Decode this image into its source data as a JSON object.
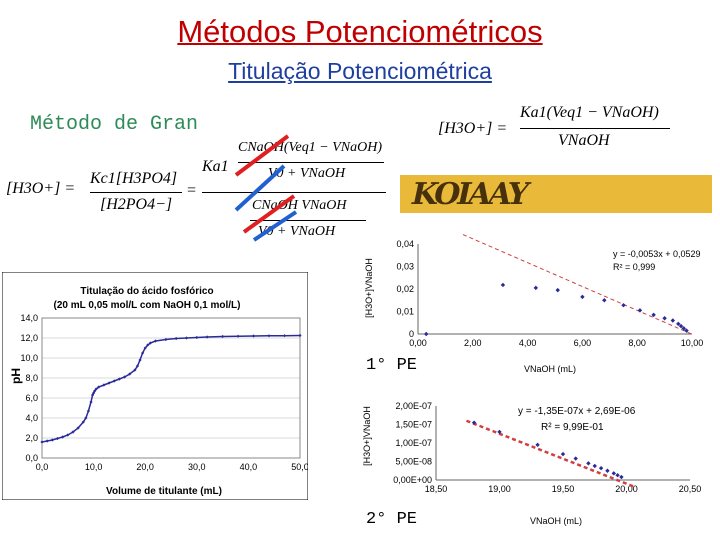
{
  "header": {
    "title": "Métodos Potenciométricos",
    "subtitle": "Titulação Potenciométrica",
    "method": "Método de Gran"
  },
  "equations": {
    "eq_left": {
      "lhs": "[H3O+] =",
      "num": "Kc1[H3PO4]",
      "den": "[H2PO4−]",
      "equals": "=",
      "ka": "Ka1",
      "c_num": "CNaOH(Veq1 − VNaOH)",
      "v_sum1": "V0 + VNaOH",
      "c_den": "CNaOH VNaOH",
      "v_sum2": "V0 + VNaOH"
    },
    "eq_right": {
      "lhs": "[H3O+] =",
      "num": "Ka1(Veq1 − VNaOH)",
      "den": "VNaOH"
    }
  },
  "labels": {
    "pe1": "1° PE",
    "pe2": "2° PE"
  },
  "chart_data": [
    {
      "type": "line",
      "title": "Titulação do ácido fosfórico",
      "subtitle": "(20 mL 0,05 mol/L com NaOH 0,1 mol/L)",
      "xlabel": "Volume de titulante (mL)",
      "ylabel": "pH",
      "xlim": [
        0,
        50
      ],
      "ylim": [
        0,
        14
      ],
      "xticks": [
        "0,0",
        "10,0",
        "20,0",
        "30,0",
        "40,0",
        "50,0"
      ],
      "yticks": [
        "0,0",
        "2,0",
        "4,0",
        "6,0",
        "8,0",
        "10,0",
        "12,0",
        "14,0"
      ],
      "x": [
        0,
        1,
        2,
        3,
        4,
        5,
        6,
        7,
        8,
        8.5,
        9,
        9.5,
        9.8,
        10,
        10.2,
        10.5,
        11,
        12,
        13,
        14,
        15,
        16,
        17,
        18,
        18.5,
        19,
        19.5,
        20,
        20.5,
        21,
        22,
        24,
        26,
        28,
        30,
        32,
        35,
        38,
        41,
        44,
        47,
        50
      ],
      "y": [
        1.6,
        1.7,
        1.8,
        1.95,
        2.1,
        2.3,
        2.6,
        3.0,
        3.6,
        4.0,
        4.7,
        5.6,
        6.3,
        6.5,
        6.7,
        6.9,
        7.1,
        7.3,
        7.5,
        7.7,
        7.9,
        8.1,
        8.4,
        8.8,
        9.2,
        9.8,
        10.5,
        11.0,
        11.3,
        11.5,
        11.7,
        11.85,
        11.95,
        12.0,
        12.05,
        12.1,
        12.15,
        12.18,
        12.2,
        12.22,
        12.23,
        12.25
      ]
    },
    {
      "type": "scatter",
      "xlabel": "VNaOH (mL)",
      "ylabel": "[H3O+]VNaOH",
      "xlim": [
        0,
        10
      ],
      "ylim": [
        0,
        0.04
      ],
      "xticks": [
        "0,00",
        "2,00",
        "4,00",
        "6,00",
        "8,00",
        "10,00"
      ],
      "yticks": [
        "0",
        "0,01",
        "0,02",
        "0,03",
        "0,04"
      ],
      "equation": "y = -0,0053x + 0,0529",
      "r2": "R² = 0,999",
      "x": [
        0.3,
        3.1,
        4.3,
        5.1,
        6.0,
        6.8,
        7.5,
        8.1,
        8.6,
        9.0,
        9.3,
        9.5,
        9.6,
        9.7,
        9.8
      ],
      "y": [
        0.0,
        0.0218,
        0.0205,
        0.0195,
        0.0165,
        0.015,
        0.0128,
        0.0105,
        0.0085,
        0.007,
        0.006,
        0.0045,
        0.0035,
        0.0025,
        0.0015
      ],
      "fit": {
        "slope": -0.0053,
        "intercept": 0.0529
      }
    },
    {
      "type": "scatter",
      "xlabel": "VNaOH (mL)",
      "ylabel": "[H3O+]VNaOH",
      "xlim": [
        18.5,
        20.5
      ],
      "ylim": [
        0,
        2e-07
      ],
      "xticks": [
        "18,50",
        "19,00",
        "19,50",
        "20,00",
        "20,50"
      ],
      "yticks": [
        "0,00E+00",
        "5,00E-08",
        "1,00E-07",
        "1,50E-07",
        "2,00E-07"
      ],
      "equation": "y = -1,35E-07x + 2,69E-06",
      "r2": "R² = 9,99E-01",
      "x": [
        18.8,
        19.0,
        19.3,
        19.5,
        19.6,
        19.7,
        19.75,
        19.8,
        19.85,
        19.9,
        19.93,
        19.96
      ],
      "y": [
        1.55e-07,
        1.3e-07,
        9.5e-08,
        7e-08,
        5.8e-08,
        4.5e-08,
        3.8e-08,
        3.2e-08,
        2.5e-08,
        1.8e-08,
        1.3e-08,
        8e-09
      ],
      "fit": {
        "slope": -1.35e-07,
        "intercept": 2.69e-06
      }
    }
  ],
  "colors": {
    "title": "#c00000",
    "subtitle": "#1f3fa0",
    "method": "#2e8b57",
    "marker": "#2a2a9a",
    "fit_line": "#d04040",
    "slash_red": "#e02020",
    "slash_blue": "#2060d0"
  }
}
